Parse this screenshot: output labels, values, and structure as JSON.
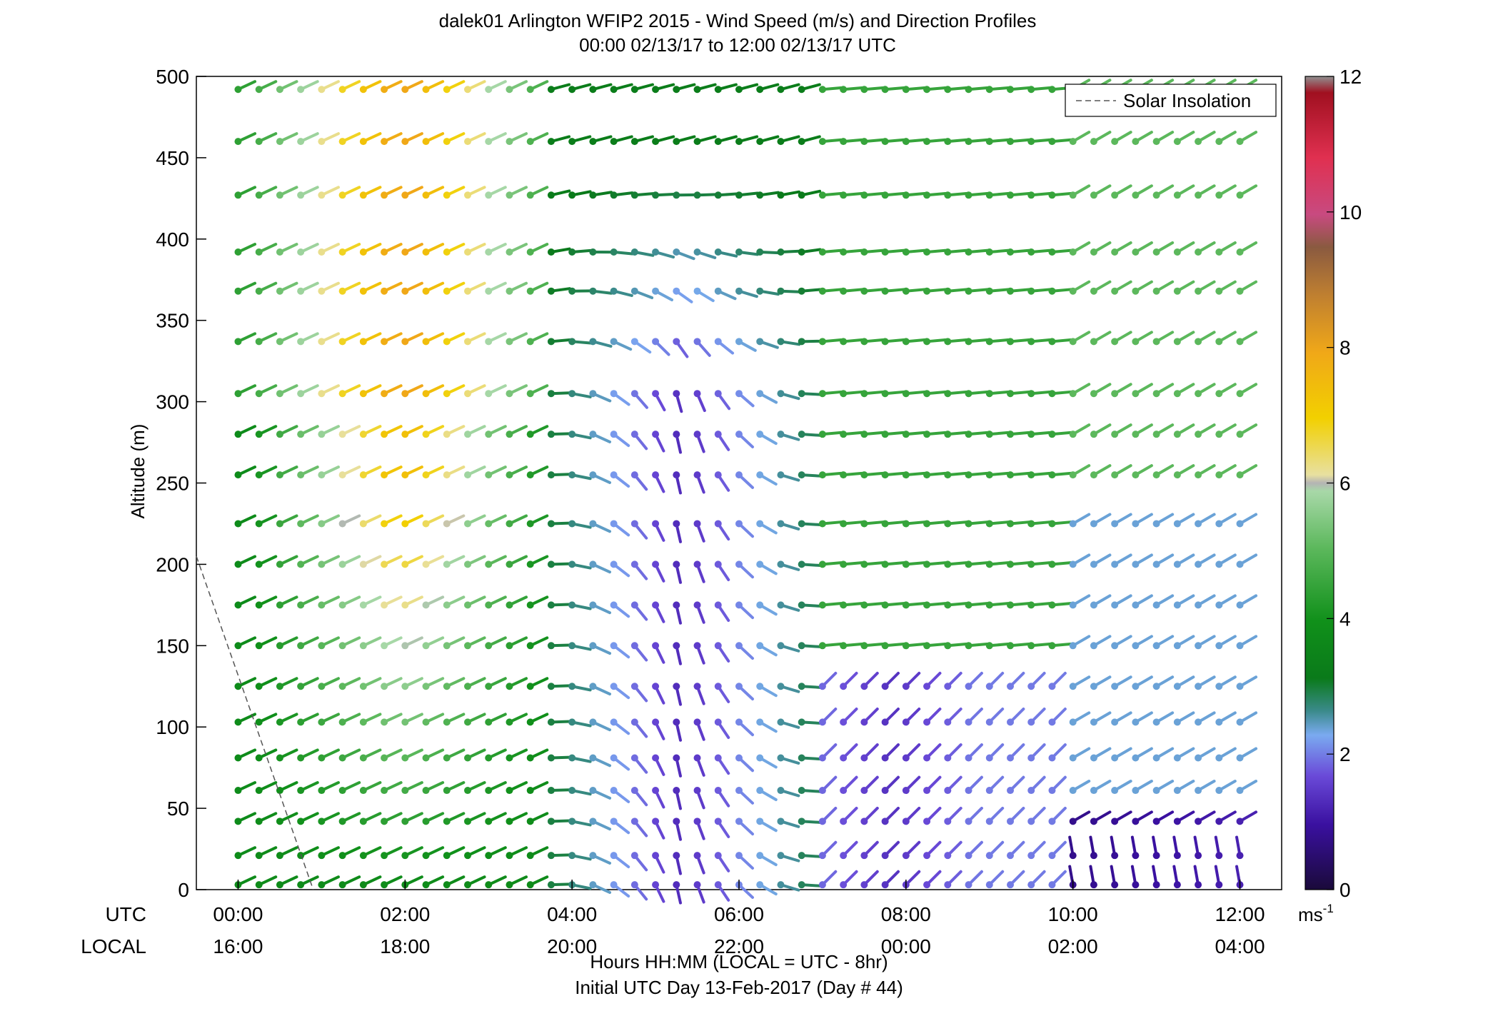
{
  "chart_data": {
    "type": "wind-barb-profile",
    "title_line1": "dalek01 Arlington WFIP2 2015 - Wind Speed (m/s) and Direction Profiles",
    "title_line2": "00:00 02/13/17 to 12:00 02/13/17  UTC",
    "ylabel": "Altitude (m)",
    "xlabel_line1": "Hours HH:MM  (LOCAL = UTC - 8hr)",
    "xlabel_line2": "Initial UTC Day 13-Feb-2017 (Day # 44)",
    "utc_row_label": "UTC",
    "local_row_label": "LOCAL",
    "x_ticks_utc": [
      "00:00",
      "02:00",
      "04:00",
      "06:00",
      "08:00",
      "10:00",
      "12:00"
    ],
    "x_ticks_local": [
      "16:00",
      "18:00",
      "20:00",
      "22:00",
      "00:00",
      "02:00",
      "04:00"
    ],
    "x_tick_hours": [
      0,
      2,
      4,
      6,
      8,
      10,
      12
    ],
    "xlim_hours": [
      -0.5,
      12.5
    ],
    "y_ticks": [
      0,
      50,
      100,
      150,
      200,
      250,
      300,
      350,
      400,
      450,
      500
    ],
    "ylim": [
      0,
      500
    ],
    "altitudes_m": [
      3,
      21,
      42,
      61,
      81,
      103,
      125,
      150,
      175,
      200,
      225,
      255,
      280,
      305,
      337,
      368,
      392,
      427,
      460,
      492
    ],
    "time_step_hours": 0.25,
    "colorbar": {
      "ticks": [
        0,
        2,
        4,
        6,
        8,
        10,
        12
      ],
      "range": [
        0,
        12
      ],
      "unit_label": "ms",
      "unit_exponent": "-1"
    },
    "legend": {
      "entries": [
        "Solar Insolation"
      ],
      "placement": "top-right"
    },
    "solar_insolation": {
      "x_hours": [
        -0.5,
        0.9
      ],
      "y_m": [
        205,
        0
      ]
    },
    "colors": {
      "axis": "#000000",
      "insolation_line": "#555555"
    }
  }
}
